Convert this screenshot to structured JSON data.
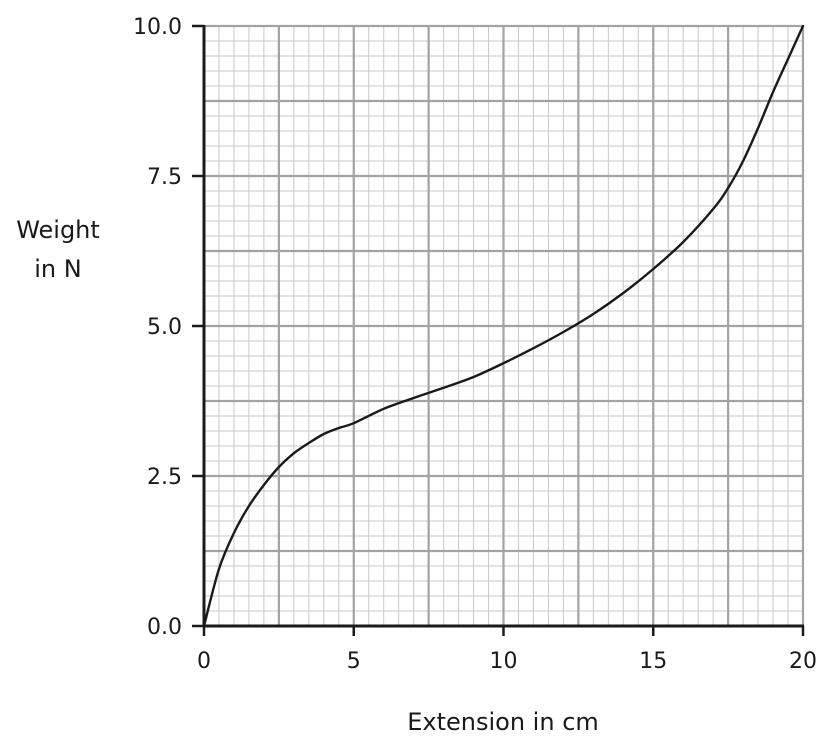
{
  "chart_data": {
    "type": "line",
    "title": "",
    "xlabel": "Extension in cm",
    "ylabel_lines": [
      "Weight",
      "in N"
    ],
    "xlim": [
      0,
      20
    ],
    "ylim": [
      0,
      10
    ],
    "x_ticks": [
      {
        "value": 0,
        "label": "0"
      },
      {
        "value": 5,
        "label": "5"
      },
      {
        "value": 10,
        "label": "10"
      },
      {
        "value": 15,
        "label": "15"
      },
      {
        "value": 20,
        "label": "20"
      }
    ],
    "y_ticks": [
      {
        "value": 0,
        "label": "0.0"
      },
      {
        "value": 2.5,
        "label": "2.5"
      },
      {
        "value": 5,
        "label": "5.0"
      },
      {
        "value": 7.5,
        "label": "7.5"
      },
      {
        "value": 10,
        "label": "10.0"
      }
    ],
    "grid": {
      "shown": true,
      "major_x_step": 2.5,
      "major_y_step": 1.25,
      "minor_x_step": 0.5,
      "minor_y_step": 0.25
    },
    "series": [
      {
        "x": [
          0,
          0.5,
          1,
          1.5,
          2,
          2.5,
          3,
          3.5,
          4,
          4.5,
          5,
          6,
          7,
          8,
          9,
          10,
          11,
          12,
          13,
          14,
          15,
          16,
          17,
          17.5,
          18,
          18.5,
          19,
          19.5,
          20
        ],
        "y": [
          0,
          0.95,
          1.55,
          2.0,
          2.35,
          2.65,
          2.88,
          3.05,
          3.2,
          3.3,
          3.38,
          3.62,
          3.8,
          3.97,
          4.15,
          4.38,
          4.63,
          4.9,
          5.2,
          5.55,
          5.95,
          6.4,
          6.95,
          7.3,
          7.75,
          8.3,
          8.9,
          9.45,
          10.0
        ],
        "color": "#1a1a1a"
      }
    ]
  }
}
